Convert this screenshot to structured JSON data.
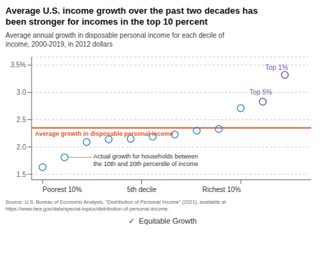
{
  "chart_data": {
    "type": "scatter",
    "title": "Average U.S. income growth over the past two decades has\nbeen stronger for incomes in the top 10 percent",
    "subtitle": "Average annual growth in disposable personal income for each decile of\nincome, 2000-2019, in 2012 dollars",
    "x": [
      0,
      1,
      2,
      3,
      4,
      5,
      6,
      7,
      8,
      9,
      10,
      11
    ],
    "values": [
      1.63,
      1.81,
      2.09,
      2.14,
      2.15,
      2.19,
      2.23,
      2.3,
      2.33,
      2.71,
      2.83,
      3.32
    ],
    "colors": [
      "#4a8ec2",
      "#4a8ec2",
      "#4a8ec2",
      "#4a8ec2",
      "#4a8ec2",
      "#4a8ec2",
      "#4a8ec2",
      "#4a8ec2",
      "#4a8ec2",
      "#4a8ec2",
      "#7b5ea7",
      "#7b5ea7"
    ],
    "xlim": [
      -0.5,
      12.2
    ],
    "xticks": [
      {
        "value": 0,
        "label": "Poorest 10%"
      },
      {
        "value": 4.5,
        "label": "5th decile"
      },
      {
        "value": 9,
        "label": "Richest 10%"
      }
    ],
    "ylim": [
      1.4,
      3.65
    ],
    "yticks": [
      1.5,
      {
        "value": 2.0,
        "label": "2.0"
      },
      2.5,
      {
        "value": 3.0,
        "label": "3.0"
      },
      {
        "value": 3.5,
        "label": "3.5%"
      }
    ],
    "grid": true,
    "reference_lines": [
      {
        "y": 2.35,
        "label": "Average growth in disposable personal income",
        "color": "#e05a2b"
      }
    ],
    "annotations": [
      {
        "text": "Actual growth for households between\nthe 10th and 20th percentile of income",
        "x": 1,
        "y": 1.81
      },
      {
        "text": "Top 5%",
        "x": 10,
        "y": 2.83,
        "color": "#7b5ea7"
      },
      {
        "text": "Top 1%",
        "x": 11,
        "y": 3.32,
        "color": "#7b5ea7"
      }
    ],
    "source": "Source: U.S. Bureau of Economic Analysis, \"Distribution of Personal Income\" (2021), available at\nhttps://www.bea.gov/data/special-topics/distribution-of-personal-income.",
    "brand": "✓  Equitable Growth"
  }
}
